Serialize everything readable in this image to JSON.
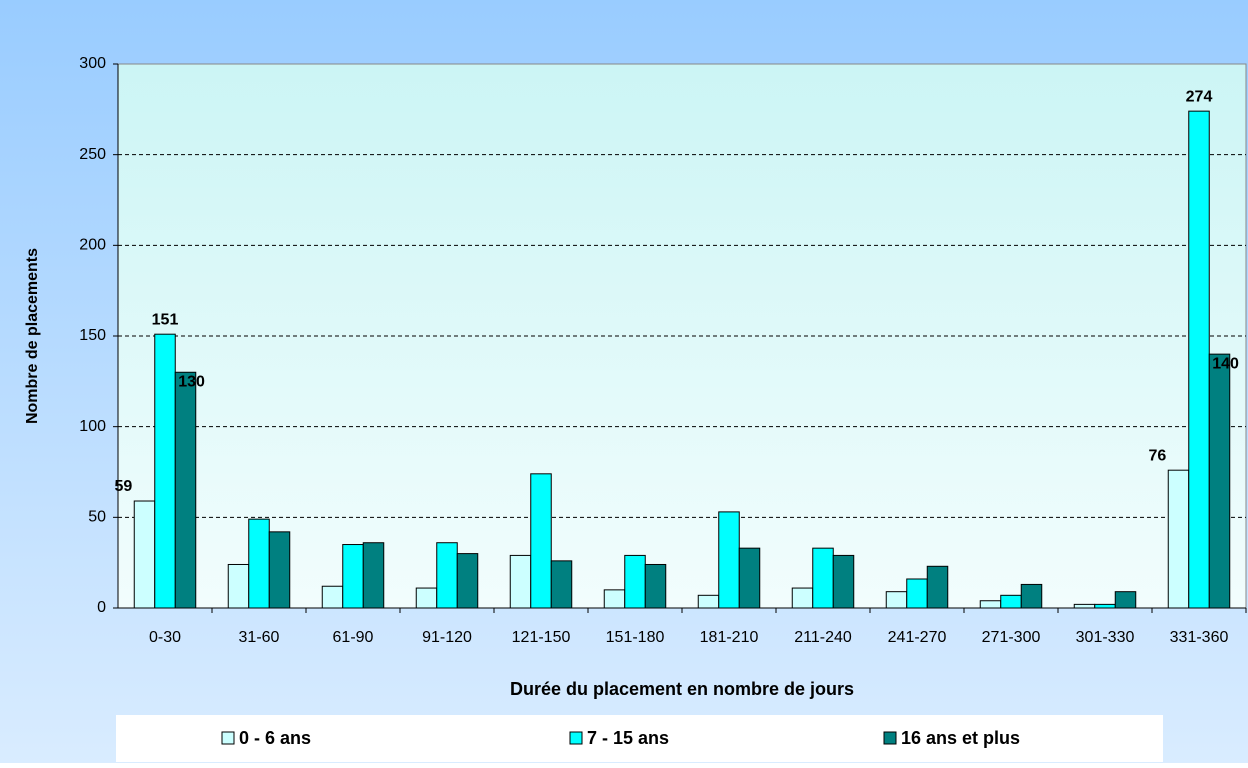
{
  "chart_data": {
    "type": "bar",
    "x_label": "Durée du placement en nombre de jours",
    "y_label": "Nombre de placements",
    "categories": [
      "0-30",
      "31-60",
      "61-90",
      "91-120",
      "121-150",
      "151-180",
      "181-210",
      "211-240",
      "241-270",
      "271-300",
      "301-330",
      "331-360"
    ],
    "series": [
      {
        "name": "0 - 6 ans",
        "color": "#ccffff",
        "values": [
          59,
          24,
          12,
          11,
          29,
          10,
          7,
          11,
          9,
          4,
          2,
          76
        ],
        "value_labels": [
          "59",
          null,
          null,
          null,
          null,
          null,
          null,
          null,
          null,
          null,
          null,
          "76"
        ]
      },
      {
        "name": "7 - 15 ans",
        "color": "#00ffff",
        "values": [
          151,
          49,
          35,
          36,
          74,
          29,
          53,
          33,
          16,
          7,
          2,
          274
        ],
        "value_labels": [
          "151",
          null,
          null,
          null,
          null,
          null,
          null,
          null,
          null,
          null,
          null,
          "274"
        ]
      },
      {
        "name": "16 ans et plus",
        "color": "#008080",
        "values": [
          130,
          42,
          36,
          30,
          26,
          24,
          33,
          29,
          23,
          13,
          9,
          140
        ],
        "value_labels": [
          "130",
          null,
          null,
          null,
          null,
          null,
          null,
          null,
          null,
          null,
          null,
          "140"
        ]
      }
    ],
    "ylim": [
      0,
      300
    ],
    "yticks": [
      0,
      50,
      100,
      150,
      200,
      250,
      300
    ],
    "grid": true,
    "legend": "bottom"
  }
}
